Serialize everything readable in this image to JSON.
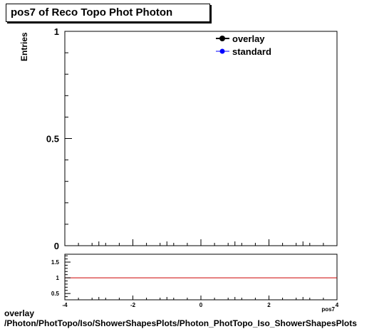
{
  "title": "pos7 of Reco Topo Phot Photon",
  "footer": {
    "line1": "overlay",
    "line2": "/Photon/PhotTopo/Iso/ShowerShapesPlots/Photon_PhotTopo_Iso_ShowerShapesPlots"
  },
  "colors": {
    "overlay": "#000000",
    "standard": "#0000ff",
    "ratio_line": "#cc0000"
  },
  "chart_data": [
    {
      "type": "line",
      "title": "pos7 of Reco Topo Phot Photon",
      "ylabel": "Entries",
      "xlabel": "pos7",
      "xlim": [
        -4,
        4
      ],
      "ylim": [
        0,
        1
      ],
      "y_tick_labels": [
        "0",
        "0.5",
        "1"
      ],
      "grid": false,
      "legend_position": "top-right",
      "series": [
        {
          "name": "overlay",
          "x": [],
          "y": []
        },
        {
          "name": "standard",
          "x": [],
          "y": []
        }
      ]
    },
    {
      "type": "line",
      "xlim": [
        -4,
        4
      ],
      "ylim": [
        0.3,
        1.75
      ],
      "x_tick_labels": [
        "-4",
        "-2",
        "0",
        "2",
        "4"
      ],
      "y_tick_labels": [
        "0.5",
        "1",
        "1.5"
      ],
      "reference_line": 1,
      "series": []
    }
  ]
}
